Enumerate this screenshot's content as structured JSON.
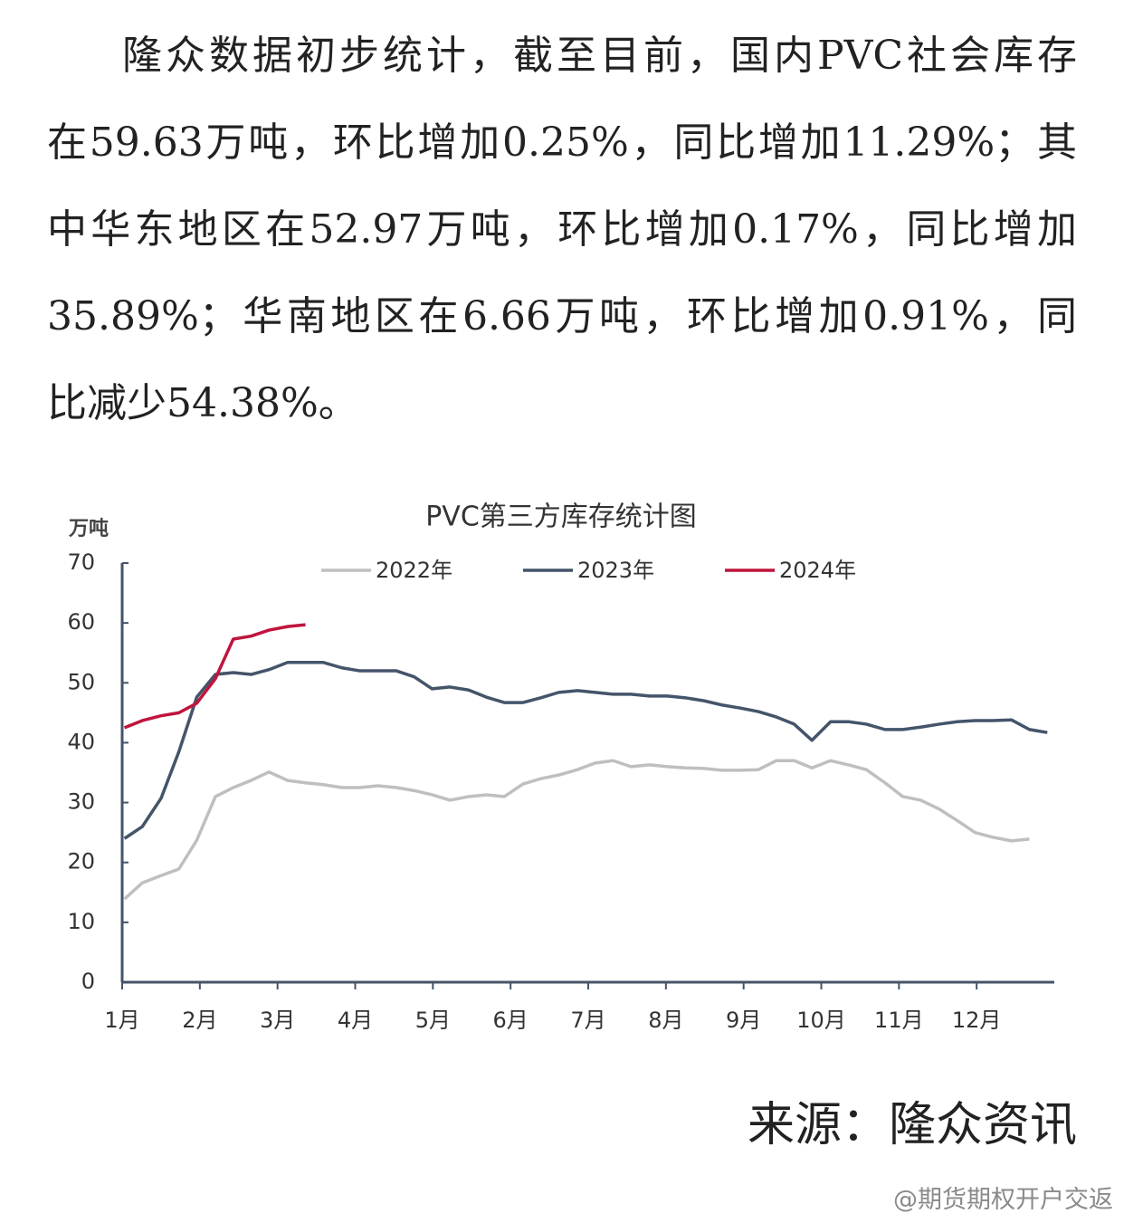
{
  "paragraph": [
    "隆众数据初步统计，截至目前，国内PVC社会库存",
    "在59.63万吨，环比增加0.25%，同比增加11.29%；其",
    "中华东地区在52.97万吨，环比增加0.17%，同比增加",
    "35.89%；华南地区在6.66万吨，环比增加0.91%，同",
    "比减少54.38%。"
  ],
  "chart_data": {
    "type": "line",
    "title": "PVC第三方库存统计图",
    "y_label": "万吨",
    "x": [
      1.03,
      1.26,
      1.5,
      1.73,
      1.96,
      2.2,
      2.43,
      2.66,
      2.89,
      3.13,
      3.36,
      3.59,
      3.83,
      4.06,
      4.29,
      4.53,
      4.76,
      4.99,
      5.22,
      5.46,
      5.69,
      5.92,
      6.16,
      6.39,
      6.62,
      6.86,
      7.09,
      7.32,
      7.55,
      7.79,
      8.02,
      8.25,
      8.49,
      8.72,
      8.95,
      9.19,
      9.42,
      9.65,
      9.88,
      10.12,
      10.35,
      10.58,
      10.82,
      11.05,
      11.28,
      11.52,
      11.75,
      11.98,
      12.21,
      12.45,
      12.68,
      12.91
    ],
    "xlim": [
      1,
      13
    ],
    "xticks": [
      {
        "value": 1,
        "label": "1月"
      },
      {
        "value": 2,
        "label": "2月"
      },
      {
        "value": 3,
        "label": "3月"
      },
      {
        "value": 4,
        "label": "4月"
      },
      {
        "value": 5,
        "label": "5月"
      },
      {
        "value": 6,
        "label": "6月"
      },
      {
        "value": 7,
        "label": "7月"
      },
      {
        "value": 8,
        "label": "8月"
      },
      {
        "value": 9,
        "label": "9月"
      },
      {
        "value": 10,
        "label": "10月"
      },
      {
        "value": 11,
        "label": "11月"
      },
      {
        "value": 12,
        "label": "12月"
      }
    ],
    "ylim": [
      0,
      70
    ],
    "yticks": [
      0,
      10,
      20,
      30,
      40,
      50,
      60,
      70
    ],
    "series": [
      {
        "name": "2022年",
        "color": "#bfbfbf",
        "values": [
          13.9,
          16.6,
          17.8,
          18.9,
          23.7,
          31,
          32.5,
          33.7,
          35.1,
          33.7,
          33.3,
          33,
          32.5,
          32.5,
          32.8,
          32.5,
          32,
          31.3,
          30.4,
          31,
          31.3,
          31,
          33.1,
          34,
          34.6,
          35.5,
          36.6,
          37,
          36,
          36.3,
          36,
          35.8,
          35.7,
          35.4,
          35.4,
          35.5,
          37,
          37,
          35.8,
          37,
          36.3,
          35.5,
          33.3,
          31,
          30.4,
          28.9,
          27,
          25,
          24.2,
          23.6,
          23.9,
          null
        ]
      },
      {
        "name": "2023年",
        "color": "#44546a",
        "values": [
          24,
          26,
          30.7,
          38.5,
          47.6,
          51.4,
          51.7,
          51.4,
          52.2,
          53.4,
          53.4,
          53.4,
          52.5,
          52,
          52,
          52,
          51,
          49,
          49.3,
          48.8,
          47.6,
          46.7,
          46.7,
          47.5,
          48.4,
          48.7,
          48.4,
          48.1,
          48.1,
          47.8,
          47.8,
          47.5,
          47,
          46.3,
          45.8,
          45.2,
          44.3,
          43.1,
          40.4,
          43.5,
          43.5,
          43.1,
          42.2,
          42.2,
          42.6,
          43.1,
          43.5,
          43.7,
          43.7,
          43.8,
          42.2,
          41.7
        ]
      },
      {
        "name": "2024年",
        "color": "#c0143c",
        "values": [
          42.5,
          43.7,
          44.5,
          45,
          46.6,
          50.7,
          57.3,
          57.8,
          58.8,
          59.4,
          59.7,
          null,
          null,
          null,
          null,
          null,
          null,
          null,
          null,
          null,
          null,
          null,
          null,
          null,
          null,
          null,
          null,
          null,
          null,
          null,
          null,
          null,
          null,
          null,
          null,
          null,
          null,
          null,
          null,
          null,
          null,
          null,
          null,
          null,
          null,
          null,
          null,
          null,
          null,
          null,
          null,
          null
        ]
      }
    ]
  },
  "source": "来源：隆众资讯",
  "watermark": "@期货期权开户交返"
}
